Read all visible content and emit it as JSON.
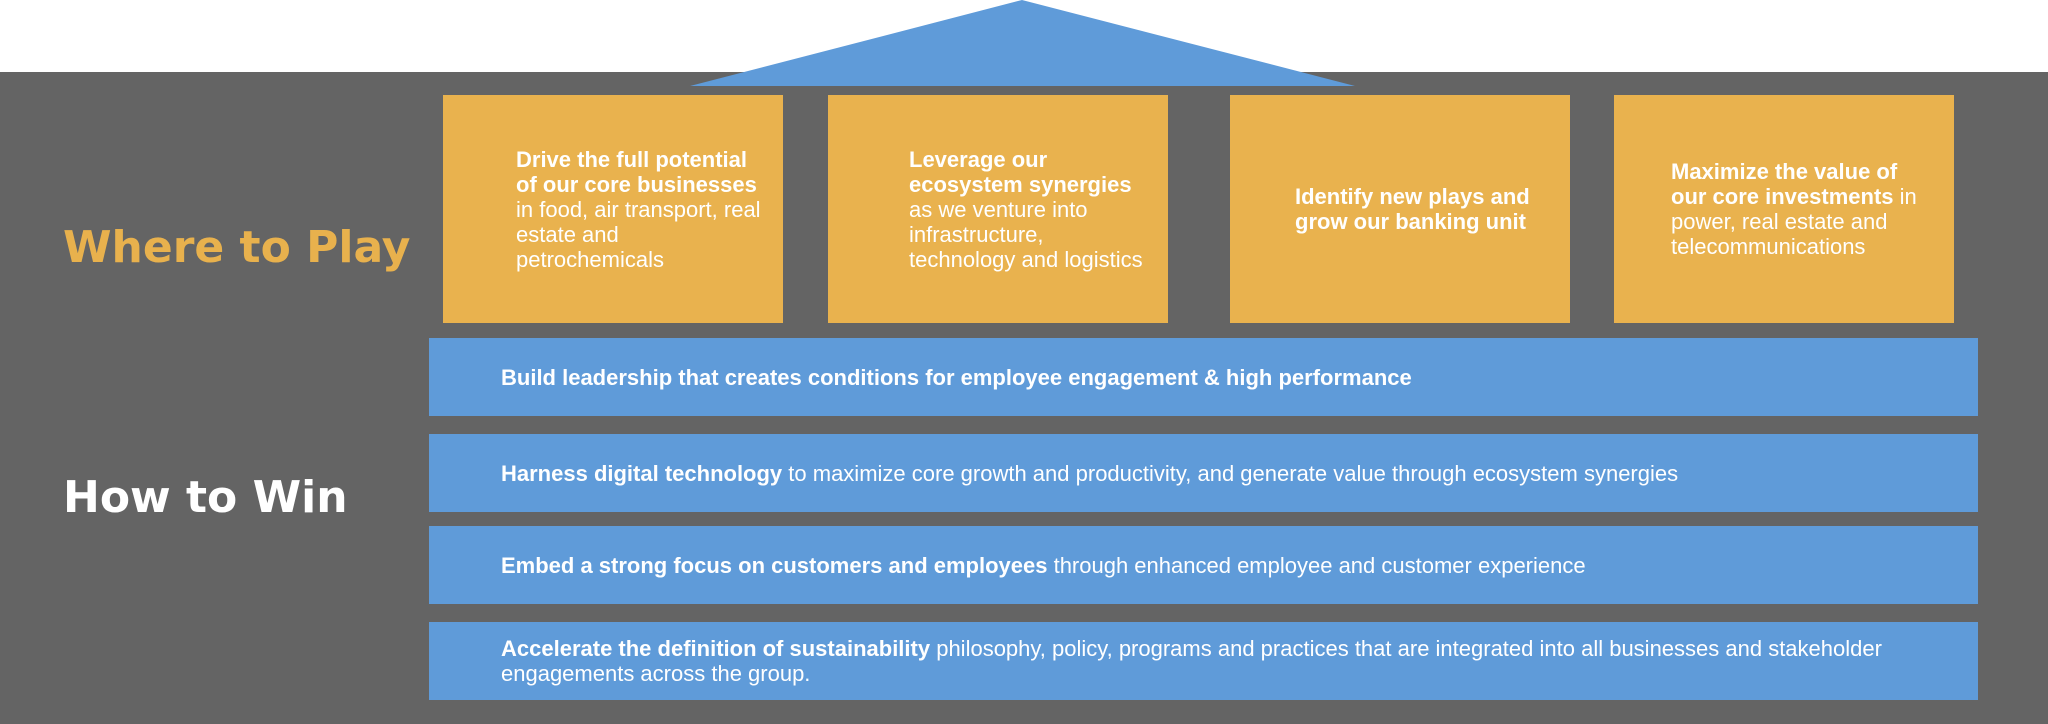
{
  "where_to_play": {
    "heading": "Where to Play",
    "pillars": [
      {
        "bold": "Drive the full potential of our core businesses",
        "rest": " in food, air transport, real estate and petrochemicals"
      },
      {
        "bold": "Leverage our ecosystem synergies",
        "rest": " as we venture into infrastructure, technology and logistics"
      },
      {
        "bold": "Identify new plays and grow our banking unit",
        "rest": ""
      },
      {
        "bold": "Maximize the value of our core investments",
        "rest": " in power, real estate and telecommunications"
      }
    ]
  },
  "how_to_win": {
    "heading": "How to Win",
    "bars": [
      {
        "bold": "Build leadership that creates conditions for employee engagement & high performance",
        "rest": ""
      },
      {
        "bold": "Harness digital technology",
        "rest": " to maximize core growth and productivity, and generate value through ecosystem synergies"
      },
      {
        "bold": "Embed a strong focus on customers and employees",
        "rest": " through enhanced employee and customer experience"
      },
      {
        "bold": "Accelerate the definition of sustainability",
        "rest": " philosophy, policy, programs and practices that are integrated into all businesses and stakeholder engagements across the group."
      }
    ]
  },
  "colors": {
    "panel": "#646464",
    "pillar": "#e9b24e",
    "bar": "#5f9bd9",
    "where_heading": "#e8b14d",
    "how_heading": "#ffffff"
  }
}
